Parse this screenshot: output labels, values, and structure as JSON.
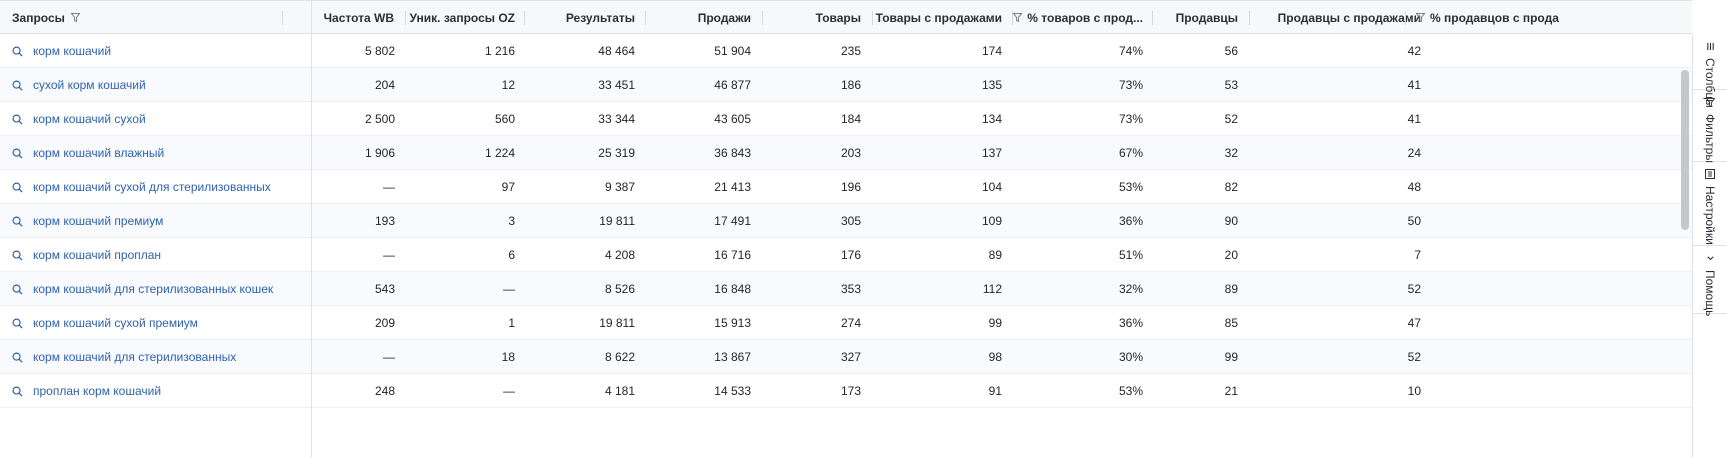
{
  "table": {
    "columns": [
      {
        "label": "Запросы",
        "filter": true
      },
      {
        "label": "Частота WB",
        "filter": false
      },
      {
        "label": "Уник. запросы OZ",
        "filter": false
      },
      {
        "label": "Результаты",
        "filter": false
      },
      {
        "label": "Продажи",
        "filter": false
      },
      {
        "label": "Товары",
        "filter": false
      },
      {
        "label": "Товары с продажами",
        "filter": false
      },
      {
        "label": "% товаров с прод...",
        "filter": true
      },
      {
        "label": "Продавцы",
        "filter": false
      },
      {
        "label": "Продавцы с продажами",
        "filter": false
      },
      {
        "label": "% продавцов с прода",
        "filter": true
      }
    ],
    "rows": [
      {
        "query": "корм кошачий",
        "wb": "5 802",
        "oz": "1 216",
        "results": "48 464",
        "sales": "51 904",
        "goods": "235",
        "goods_sales": "174",
        "pct_goods": "74%",
        "sellers": "56",
        "sellers_sales": "42"
      },
      {
        "query": "сухой корм кошачий",
        "wb": "204",
        "oz": "12",
        "results": "33 451",
        "sales": "46 877",
        "goods": "186",
        "goods_sales": "135",
        "pct_goods": "73%",
        "sellers": "53",
        "sellers_sales": "41"
      },
      {
        "query": "корм кошачий сухой",
        "wb": "2 500",
        "oz": "560",
        "results": "33 344",
        "sales": "43 605",
        "goods": "184",
        "goods_sales": "134",
        "pct_goods": "73%",
        "sellers": "52",
        "sellers_sales": "41"
      },
      {
        "query": "корм кошачий влажный",
        "wb": "1 906",
        "oz": "1 224",
        "results": "25 319",
        "sales": "36 843",
        "goods": "203",
        "goods_sales": "137",
        "pct_goods": "67%",
        "sellers": "32",
        "sellers_sales": "24"
      },
      {
        "query": "корм кошачий сухой для стерилизованных",
        "wb": "—",
        "oz": "97",
        "results": "9 387",
        "sales": "21 413",
        "goods": "196",
        "goods_sales": "104",
        "pct_goods": "53%",
        "sellers": "82",
        "sellers_sales": "48"
      },
      {
        "query": "корм кошачий премиум",
        "wb": "193",
        "oz": "3",
        "results": "19 811",
        "sales": "17 491",
        "goods": "305",
        "goods_sales": "109",
        "pct_goods": "36%",
        "sellers": "90",
        "sellers_sales": "50"
      },
      {
        "query": "корм кошачий проплан",
        "wb": "—",
        "oz": "6",
        "results": "4 208",
        "sales": "16 716",
        "goods": "176",
        "goods_sales": "89",
        "pct_goods": "51%",
        "sellers": "20",
        "sellers_sales": "7"
      },
      {
        "query": "корм кошачий для стерилизованных кошек",
        "wb": "543",
        "oz": "—",
        "results": "8 526",
        "sales": "16 848",
        "goods": "353",
        "goods_sales": "112",
        "pct_goods": "32%",
        "sellers": "89",
        "sellers_sales": "52"
      },
      {
        "query": "корм кошачий сухой премиум",
        "wb": "209",
        "oz": "1",
        "results": "19 811",
        "sales": "15 913",
        "goods": "274",
        "goods_sales": "99",
        "pct_goods": "36%",
        "sellers": "85",
        "sellers_sales": "47"
      },
      {
        "query": "корм кошачий для стерилизованных",
        "wb": "—",
        "oz": "18",
        "results": "8 622",
        "sales": "13 867",
        "goods": "327",
        "goods_sales": "98",
        "pct_goods": "30%",
        "sellers": "99",
        "sellers_sales": "52"
      },
      {
        "query": "проплан корм кошачий",
        "wb": "248",
        "oz": "—",
        "results": "4 181",
        "sales": "14 533",
        "goods": "173",
        "goods_sales": "91",
        "pct_goods": "53%",
        "sellers": "21",
        "sellers_sales": "10"
      }
    ]
  },
  "sidebar": [
    {
      "label": "Столбцы",
      "icon": "columns-icon"
    },
    {
      "label": "Фильтры",
      "icon": "filter-icon"
    },
    {
      "label": "Настройки",
      "icon": "settings-icon"
    },
    {
      "label": "Помощь",
      "icon": "help-chevron-icon"
    }
  ],
  "colors": {
    "link": "#2f62ad",
    "header_bg": "#f7f8fa",
    "row_alt": "#f8fafd",
    "border": "#dfe3e8"
  }
}
